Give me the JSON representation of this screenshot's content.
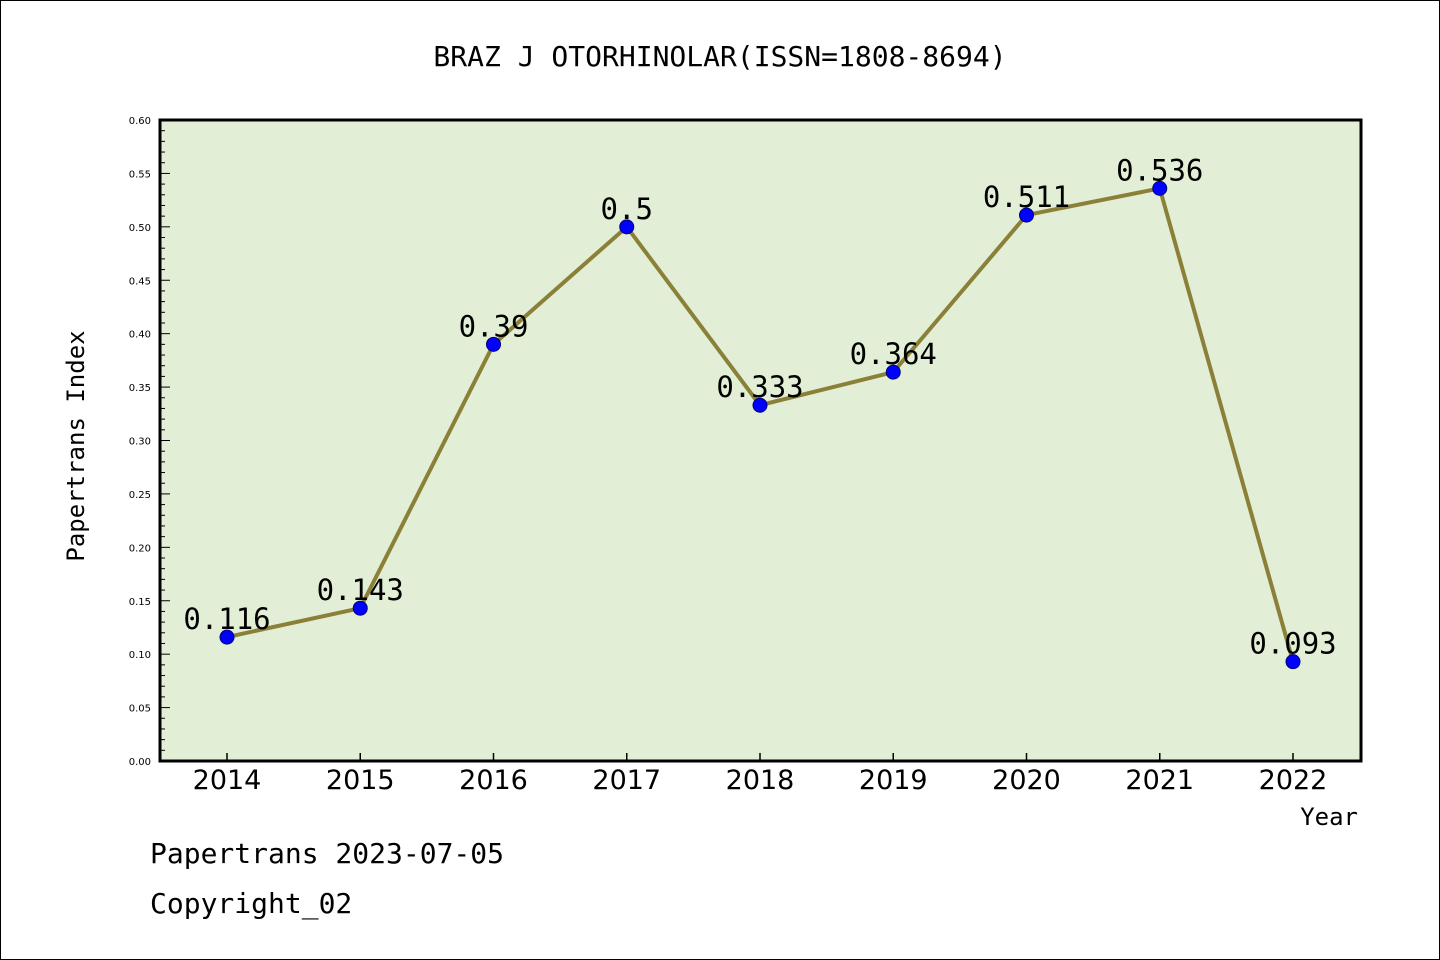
{
  "chart_data": {
    "type": "line",
    "title": "BRAZ J OTORHINOLAR(ISSN=1808-8694)",
    "xlabel": "Year",
    "ylabel": "Papertrans Index",
    "categories": [
      "2014",
      "2015",
      "2016",
      "2017",
      "2018",
      "2019",
      "2020",
      "2021",
      "2022"
    ],
    "series": [
      {
        "values": [
          0.116,
          0.143,
          0.39,
          0.5,
          0.333,
          0.364,
          0.511,
          0.536,
          0.093
        ],
        "labels": [
          "0.116",
          "0.143",
          "0.39",
          "0.5",
          "0.333",
          "0.364",
          "0.511",
          "0.536",
          "0.093"
        ],
        "line_color": "#8b8037",
        "marker_color": "#0000ff"
      }
    ],
    "ylim": [
      0,
      0.6
    ],
    "yticks": [
      "0.00",
      "0.05",
      "0.10",
      "0.15",
      "0.20",
      "0.25",
      "0.30",
      "0.35",
      "0.40",
      "0.45",
      "0.50",
      "0.55",
      "0.60"
    ],
    "plot_background": "#e2efd6",
    "grid": false,
    "legend": "none"
  },
  "footer": {
    "date_line": "Papertrans 2023-07-05",
    "copyright": "Copyright_02"
  }
}
